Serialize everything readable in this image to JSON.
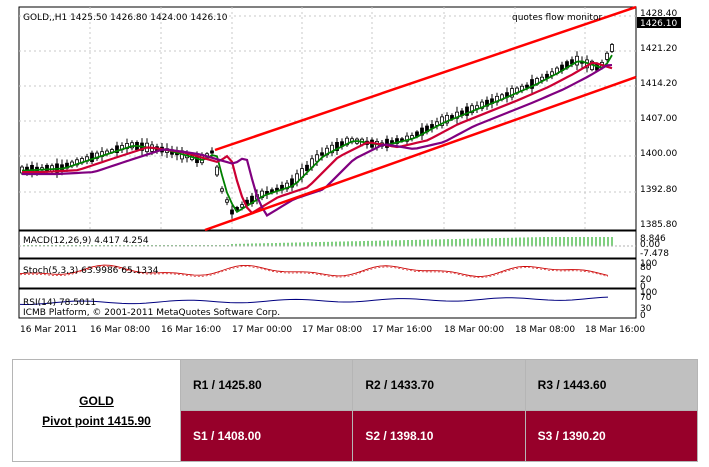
{
  "chart": {
    "header": "GOLD,,H1  1425.50 1426.80 1424.00 1426.10",
    "top_right": "quotes flow   monitor",
    "price_labels": [
      "1428.40",
      "1421.20",
      "1414.20",
      "1407.00",
      "1400.00",
      "1392.80",
      "1385.80"
    ],
    "current_price": "1426.10",
    "macd_label": "MACD(12,26,9) 4.417 4.254",
    "macd_scale": [
      "8.846",
      "0.00",
      "-7.478"
    ],
    "stoch_label": "Stoch(5,3,3) 63.9986 65.1334",
    "stoch_scale": [
      "100",
      "80",
      "20",
      "0"
    ],
    "rsi_label": "RSI(14) 78.5011",
    "rsi_scale": [
      "100",
      "70",
      "30",
      "0"
    ],
    "copyright": "ICMB Platform, © 2001-2011 MetaQuotes Software Corp.",
    "time_labels": [
      "16 Mar 2011",
      "16 Mar 08:00",
      "16 Mar 16:00",
      "17 Mar 00:00",
      "17 Mar 08:00",
      "17 Mar 16:00",
      "18 Mar 00:00",
      "18 Mar 08:00",
      "18 Mar 16:00"
    ],
    "colors": {
      "channel": "#ff0000",
      "ma_fast": "#008000",
      "ma_mid": "#cc0033",
      "ma_slow": "#800080",
      "macd": "#00a000"
    }
  },
  "pivot": {
    "instrument": "GOLD",
    "pivot_text": "Pivot point 1415.90",
    "r1": "R1 / 1425.80",
    "r2": "R2 / 1433.70",
    "r3": "R3 / 1443.60",
    "s1": "S1 / 1408.00",
    "s2": "S2 / 1398.10",
    "s3": "S3 / 1390.20"
  }
}
